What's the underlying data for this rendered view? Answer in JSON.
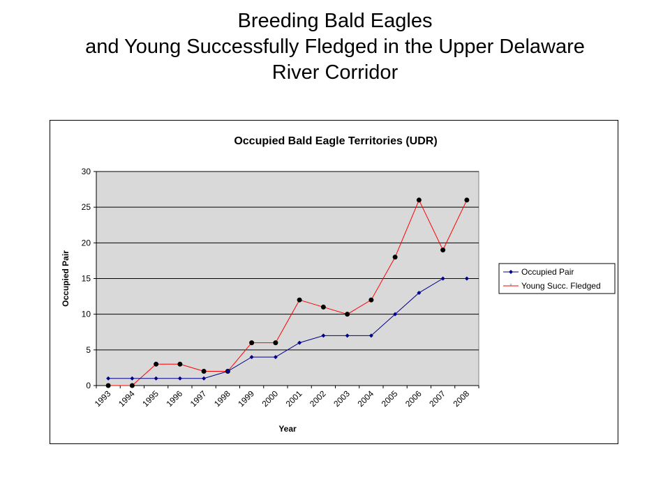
{
  "slide": {
    "title_lines": [
      "Breeding Bald Eagles",
      "and Young Successfully Fledged in the Upper Delaware",
      "River Corridor"
    ]
  },
  "chart_data": {
    "type": "line",
    "title": "Occupied Bald Eagle Territories (UDR)",
    "xlabel": "Year",
    "ylabel": "Occupied Pair",
    "categories": [
      "1993",
      "1994",
      "1995",
      "1996",
      "1997",
      "1998",
      "1999",
      "2000",
      "2001",
      "2002",
      "2003",
      "2004",
      "2005",
      "2006",
      "2007",
      "2008"
    ],
    "ylim": [
      0,
      30
    ],
    "yticks": [
      0,
      5,
      10,
      15,
      20,
      25,
      30
    ],
    "grid": true,
    "legend_position": "right",
    "series": [
      {
        "name": "Occupied Pair",
        "color": "#00008b",
        "marker": "diamond",
        "values": [
          1,
          1,
          1,
          1,
          1,
          2,
          4,
          4,
          6,
          7,
          7,
          7,
          10,
          13,
          15,
          15
        ]
      },
      {
        "name": "Young Succ. Fledged",
        "color": "#ff0000",
        "marker": "circle",
        "values": [
          0,
          0,
          3,
          3,
          2,
          2,
          6,
          6,
          12,
          11,
          10,
          12,
          18,
          26,
          19,
          26
        ]
      }
    ],
    "colors": {
      "plot_background": "#d9d9d9",
      "gridline": "#000000"
    }
  }
}
